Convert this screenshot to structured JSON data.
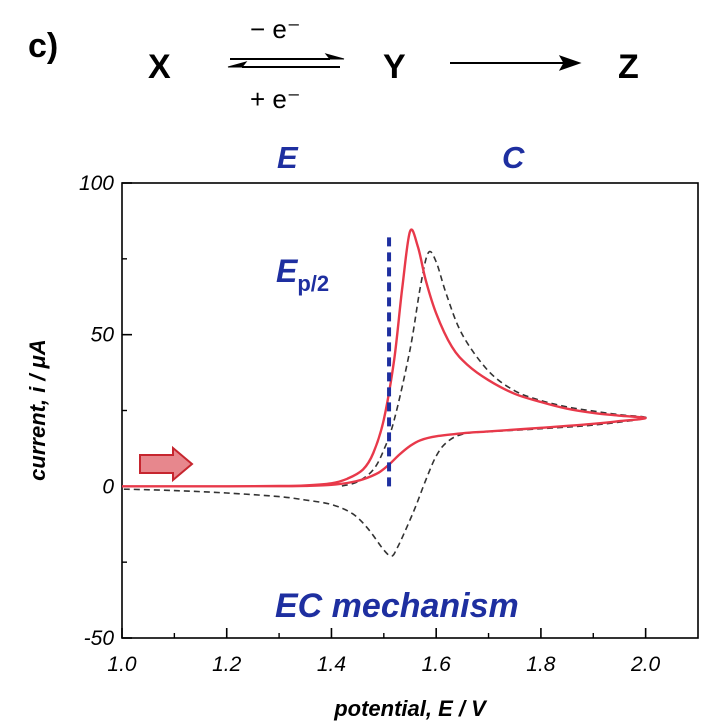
{
  "panel_label": "c)",
  "scheme": {
    "species": [
      "X",
      "Y",
      "Z"
    ],
    "oxidation_label": "− e⁻",
    "reduction_label": "+ e⁻",
    "step_labels": [
      "E",
      "C"
    ]
  },
  "colors": {
    "blue": "#1e2fa0",
    "red": "#e8394a",
    "dashed": "#333333",
    "arrow_fill": "#e7878d",
    "arrow_stroke": "#c6262f"
  },
  "chart_data": {
    "type": "line",
    "xlabel": "potential, E / V",
    "ylabel": "current, i / μA",
    "xlim": [
      1.0,
      2.1
    ],
    "ylim": [
      -50,
      100
    ],
    "x_ticks": [
      1.0,
      1.2,
      1.4,
      1.6,
      1.8,
      2.0
    ],
    "x_tick_labels": [
      "1.0",
      "1.2",
      "1.4",
      "1.6",
      "1.8",
      "2.0"
    ],
    "y_ticks": [
      -50,
      0,
      50,
      100
    ],
    "y_tick_labels": [
      "-50",
      "0",
      "50",
      "100"
    ],
    "grid": false,
    "annotations": {
      "ep2_label": "E",
      "ep2_subscript": "p/2",
      "ep2_x": 1.51,
      "ep2_y_range": [
        0,
        83
      ],
      "mechanism": "EC mechanism",
      "scan_direction": "forward scan (positive direction)"
    },
    "series": [
      {
        "name": "EC mechanism (solid red)",
        "style": "solid",
        "points": [
          [
            1.0,
            0
          ],
          [
            1.2,
            0
          ],
          [
            1.3,
            0.1
          ],
          [
            1.35,
            0.3
          ],
          [
            1.4,
            1
          ],
          [
            1.43,
            2.5
          ],
          [
            1.46,
            5.5
          ],
          [
            1.48,
            11
          ],
          [
            1.5,
            22
          ],
          [
            1.52,
            42
          ],
          [
            1.535,
            65
          ],
          [
            1.55,
            84
          ],
          [
            1.565,
            79
          ],
          [
            1.58,
            68
          ],
          [
            1.6,
            57
          ],
          [
            1.63,
            46
          ],
          [
            1.66,
            40
          ],
          [
            1.7,
            35
          ],
          [
            1.75,
            30.5
          ],
          [
            1.8,
            27.8
          ],
          [
            1.85,
            25.6
          ],
          [
            1.9,
            24.2
          ],
          [
            1.95,
            23.3
          ],
          [
            2.0,
            22.5
          ],
          [
            1.95,
            21.5
          ],
          [
            1.9,
            20.6
          ],
          [
            1.8,
            19.3
          ],
          [
            1.7,
            18.1
          ],
          [
            1.65,
            17.5
          ],
          [
            1.6,
            16.5
          ],
          [
            1.57,
            15.2
          ],
          [
            1.55,
            13.3
          ],
          [
            1.53,
            10.5
          ],
          [
            1.51,
            7.2
          ],
          [
            1.49,
            4.5
          ],
          [
            1.46,
            2.3
          ],
          [
            1.43,
            1.1
          ],
          [
            1.4,
            0.5
          ],
          [
            1.35,
            0.15
          ],
          [
            1.3,
            0.03
          ]
        ]
      },
      {
        "name": "reversible E (dashed)",
        "style": "dashed",
        "points": [
          [
            1.42,
            0.1
          ],
          [
            1.45,
            1.5
          ],
          [
            1.48,
            5.5
          ],
          [
            1.5,
            12
          ],
          [
            1.52,
            22
          ],
          [
            1.55,
            45
          ],
          [
            1.57,
            66
          ],
          [
            1.585,
            77
          ],
          [
            1.6,
            74
          ],
          [
            1.62,
            63
          ],
          [
            1.65,
            50
          ],
          [
            1.7,
            38
          ],
          [
            1.75,
            31.5
          ],
          [
            1.8,
            28.3
          ],
          [
            1.85,
            26.2
          ],
          [
            1.9,
            24.8
          ],
          [
            1.95,
            23.6
          ],
          [
            2.0,
            22.5
          ],
          [
            1.9,
            20.2
          ],
          [
            1.8,
            19
          ],
          [
            1.7,
            18
          ],
          [
            1.65,
            17.2
          ],
          [
            1.62,
            14.5
          ],
          [
            1.6,
            10
          ],
          [
            1.58,
            2
          ],
          [
            1.56,
            -7
          ],
          [
            1.54,
            -15
          ],
          [
            1.525,
            -20.5
          ],
          [
            1.515,
            -23
          ],
          [
            1.5,
            -21
          ],
          [
            1.47,
            -14
          ],
          [
            1.44,
            -9
          ],
          [
            1.4,
            -6
          ],
          [
            1.35,
            -4.5
          ],
          [
            1.3,
            -3.4
          ],
          [
            1.2,
            -2.2
          ],
          [
            1.1,
            -1.4
          ],
          [
            1.0,
            -0.9
          ]
        ]
      }
    ]
  }
}
